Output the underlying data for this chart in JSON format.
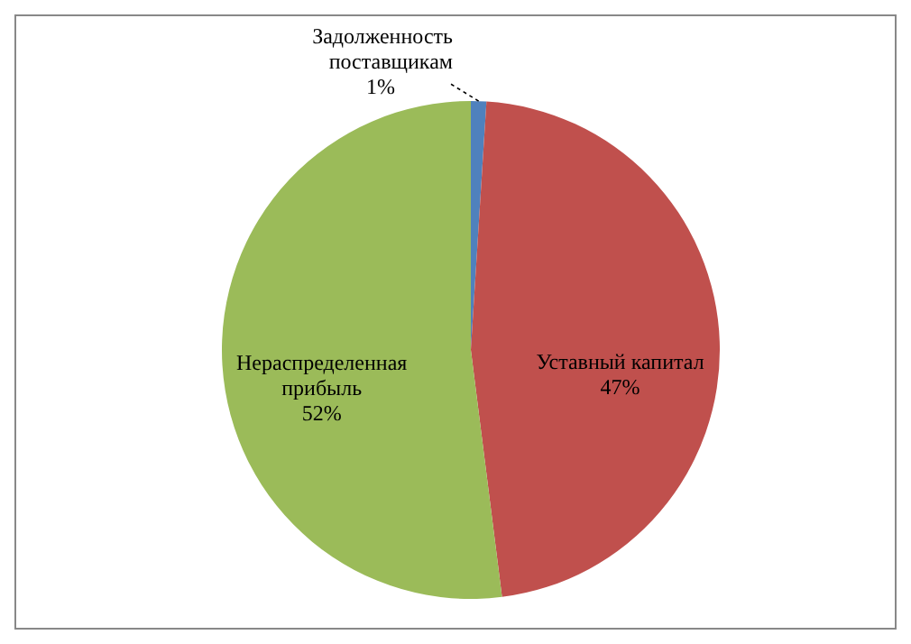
{
  "chart_data": {
    "type": "pie",
    "categories": [
      "Задолженность поставщикам",
      "Уставный капитал",
      "Нераспределенная прибыль"
    ],
    "values": [
      1,
      47,
      52
    ],
    "colors": [
      "#4f81bd",
      "#c0504d",
      "#9bbb59"
    ],
    "value_labels": [
      "1%",
      "47%",
      "52%"
    ],
    "legend": false
  }
}
